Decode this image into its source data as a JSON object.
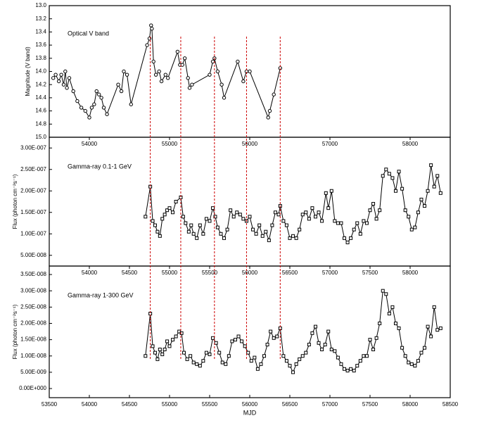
{
  "chart_data": [
    {
      "type": "line",
      "title": "Optical V band",
      "ylabel": "Magnitude (V band)",
      "color": "#000000",
      "marker": "circle",
      "xlim": [
        53500,
        58500
      ],
      "ylim": [
        15.0,
        13.0
      ],
      "yticks": [
        {
          "value": 13.0,
          "label": "13.0"
        },
        13.2,
        13.4,
        13.6,
        13.8,
        {
          "value": 14.0,
          "label": "14.0"
        },
        14.2,
        14.4,
        14.6,
        14.8,
        {
          "value": 15.0,
          "label": "15.0"
        }
      ],
      "vlines": [
        54760,
        55140,
        55560,
        55960,
        56380
      ],
      "vline_color": "#cc0000",
      "x": [
        53550,
        53580,
        53620,
        53650,
        53680,
        53700,
        53720,
        53750,
        53800,
        53850,
        53900,
        53950,
        54000,
        54030,
        54060,
        54090,
        54120,
        54150,
        54180,
        54220,
        54360,
        54400,
        54430,
        54470,
        54520,
        54720,
        54750,
        54770,
        54780,
        54800,
        54830,
        54870,
        54900,
        54950,
        54980,
        55100,
        55130,
        55160,
        55190,
        55230,
        55250,
        55280,
        55500,
        55540,
        55560,
        55600,
        55650,
        55680,
        55850,
        55920,
        55960,
        56000,
        56230,
        56250,
        56300,
        56380
      ],
      "y": [
        14.1,
        14.05,
        14.15,
        14.05,
        14.2,
        14.0,
        14.25,
        14.1,
        14.3,
        14.45,
        14.55,
        14.6,
        14.7,
        14.55,
        14.5,
        14.3,
        14.35,
        14.4,
        14.55,
        14.65,
        14.2,
        14.3,
        14.0,
        14.05,
        14.5,
        13.6,
        13.5,
        13.3,
        13.35,
        13.85,
        14.05,
        14.0,
        14.15,
        14.05,
        14.1,
        13.7,
        13.9,
        13.9,
        13.8,
        14.1,
        14.25,
        14.2,
        14.05,
        13.85,
        13.8,
        14.0,
        14.2,
        14.4,
        13.85,
        14.15,
        14.0,
        14.0,
        14.7,
        14.6,
        14.35,
        13.95
      ]
    },
    {
      "type": "line",
      "title": "Gamma-ray 0.1-1 GeV",
      "ylabel": "Flux (photon cm⁻²s⁻¹)",
      "color": "#000000",
      "marker": "square",
      "xlim": [
        53500,
        58500
      ],
      "top_xticks": [
        54000,
        55000,
        56000,
        57000,
        58000
      ],
      "ylim": [
        2.5e-08,
        3.25e-07
      ],
      "yticks": [
        {
          "value": 5e-08,
          "label": "5.00E-008"
        },
        {
          "value": 1e-07,
          "label": "1.00E-007"
        },
        {
          "value": 1.5e-07,
          "label": "1.50E-007"
        },
        {
          "value": 2e-07,
          "label": "2.00E-007"
        },
        {
          "value": 2.5e-07,
          "label": "2.50E-007"
        },
        {
          "value": 3e-07,
          "label": "3.00E-007"
        }
      ],
      "x": [
        54700,
        54760,
        54790,
        54820,
        54850,
        54880,
        54910,
        54940,
        54970,
        55000,
        55040,
        55080,
        55140,
        55170,
        55200,
        55240,
        55270,
        55300,
        55340,
        55380,
        55420,
        55460,
        55500,
        55540,
        55570,
        55600,
        55640,
        55680,
        55720,
        55760,
        55800,
        55840,
        55880,
        55920,
        55960,
        56000,
        56040,
        56080,
        56120,
        56160,
        56200,
        56240,
        56280,
        56320,
        56360,
        56380,
        56420,
        56460,
        56500,
        56540,
        56580,
        56620,
        56660,
        56700,
        56740,
        56780,
        56820,
        56860,
        56900,
        56950,
        56980,
        57020,
        57060,
        57100,
        57140,
        57180,
        57220,
        57260,
        57300,
        57340,
        57380,
        57420,
        57460,
        57500,
        57540,
        57580,
        57620,
        57660,
        57700,
        57740,
        57780,
        57820,
        57860,
        57900,
        57940,
        57980,
        58020,
        58060,
        58100,
        58140,
        58180,
        58220,
        58260,
        58300,
        58340,
        58380
      ],
      "y": [
        1.4e-07,
        2.1e-07,
        1.3e-07,
        1.2e-07,
        1.05e-07,
        9.5e-08,
        1.35e-07,
        1.45e-07,
        1.55e-07,
        1.6e-07,
        1.5e-07,
        1.75e-07,
        1.85e-07,
        1.4e-07,
        1.25e-07,
        1.05e-07,
        1.2e-07,
        1e-07,
        9e-08,
        1.2e-07,
        1e-07,
        1.35e-07,
        1.3e-07,
        1.6e-07,
        1.4e-07,
        1.15e-07,
        1e-07,
        9e-08,
        1.1e-07,
        1.55e-07,
        1.4e-07,
        1.5e-07,
        1.45e-07,
        1.35e-07,
        1.3e-07,
        1.4e-07,
        1.1e-07,
        1e-07,
        1.2e-07,
        9.5e-08,
        1.05e-07,
        8.5e-08,
        1.2e-07,
        1.5e-07,
        1.45e-07,
        1.65e-07,
        1.3e-07,
        1.2e-07,
        9e-08,
        9.5e-08,
        9e-08,
        1.1e-07,
        1.45e-07,
        1.5e-07,
        1.35e-07,
        1.6e-07,
        1.4e-07,
        1.5e-07,
        1.3e-07,
        1.95e-07,
        1.6e-07,
        2e-07,
        1.3e-07,
        1.25e-07,
        1.25e-07,
        9e-08,
        8e-08,
        9e-08,
        1.1e-07,
        1.25e-07,
        1e-07,
        1.3e-07,
        1.25e-07,
        1.55e-07,
        1.7e-07,
        1.35e-07,
        1.55e-07,
        2.35e-07,
        2.5e-07,
        2.4e-07,
        2.3e-07,
        2e-07,
        2.45e-07,
        2.05e-07,
        1.55e-07,
        1.4e-07,
        1.1e-07,
        1.15e-07,
        1.5e-07,
        1.8e-07,
        1.65e-07,
        2e-07,
        2.6e-07,
        2.1e-07,
        2.35e-07,
        1.95e-07
      ]
    },
    {
      "type": "line",
      "title": "Gamma-ray 1-300 GeV",
      "ylabel": "Flux (photon cm⁻²s⁻¹)",
      "xlabel": "MJD",
      "color": "#000000",
      "marker": "square",
      "xlim": [
        53500,
        58500
      ],
      "top_xticks": [
        54000,
        54500,
        55000,
        55500,
        56000,
        56500,
        57000,
        57500,
        58000
      ],
      "xticks": [
        53500,
        54000,
        54500,
        55000,
        55500,
        56000,
        56500,
        57000,
        57500,
        58000,
        58500
      ],
      "ylim": [
        -2.8e-09,
        3.76e-08
      ],
      "yticks": [
        {
          "value": 0,
          "label": "0.00E+000"
        },
        {
          "value": 5e-09,
          "label": "5.00E-009"
        },
        {
          "value": 1e-08,
          "label": "1.00E-008"
        },
        {
          "value": 1.5e-08,
          "label": "1.50E-008"
        },
        {
          "value": 2e-08,
          "label": "2.00E-008"
        },
        {
          "value": 2.5e-08,
          "label": "2.50E-008"
        },
        {
          "value": 3e-08,
          "label": "3.00E-008"
        },
        {
          "value": 3.5e-08,
          "label": "3.50E-008"
        }
      ],
      "x": [
        54700,
        54760,
        54790,
        54820,
        54850,
        54880,
        54910,
        54940,
        54970,
        55000,
        55040,
        55080,
        55120,
        55150,
        55180,
        55220,
        55260,
        55300,
        55340,
        55380,
        55420,
        55460,
        55500,
        55540,
        55580,
        55620,
        55660,
        55700,
        55740,
        55780,
        55820,
        55860,
        55900,
        55940,
        55980,
        56020,
        56060,
        56100,
        56140,
        56180,
        56220,
        56260,
        56300,
        56340,
        56380,
        56420,
        56460,
        56500,
        56540,
        56580,
        56620,
        56660,
        56700,
        56740,
        56780,
        56820,
        56860,
        56900,
        56940,
        56980,
        57020,
        57060,
        57100,
        57140,
        57180,
        57220,
        57260,
        57300,
        57340,
        57380,
        57420,
        57460,
        57500,
        57540,
        57580,
        57620,
        57660,
        57700,
        57740,
        57780,
        57820,
        57860,
        57900,
        57940,
        57980,
        58020,
        58060,
        58100,
        58140,
        58180,
        58220,
        58260,
        58300,
        58340,
        58380
      ],
      "y": [
        1e-08,
        2.3e-08,
        1.3e-08,
        1.1e-08,
        9e-09,
        1.2e-08,
        1.05e-08,
        1.2e-08,
        1.45e-08,
        1.3e-08,
        1.5e-08,
        1.6e-08,
        1.75e-08,
        1.7e-08,
        1.1e-08,
        9e-09,
        1e-08,
        8e-09,
        7.5e-09,
        7e-09,
        8.5e-09,
        1.1e-08,
        1.05e-08,
        1.55e-08,
        1.4e-08,
        1.1e-08,
        8e-09,
        7.5e-09,
        1e-08,
        1.45e-08,
        1.5e-08,
        1.6e-08,
        1.45e-08,
        1.3e-08,
        1.1e-08,
        8.5e-09,
        9.5e-09,
        6e-09,
        7.5e-09,
        1e-08,
        1.35e-08,
        1.75e-08,
        1.55e-08,
        1.6e-08,
        1.85e-08,
        1e-08,
        8.5e-09,
        7e-09,
        5e-09,
        7.5e-09,
        9e-09,
        1e-08,
        1.1e-08,
        1.35e-08,
        1.7e-08,
        1.9e-08,
        1.4e-08,
        1.2e-08,
        1.35e-08,
        1.75e-08,
        1.2e-08,
        1.15e-08,
        9.5e-09,
        7.5e-09,
        6e-09,
        5.5e-09,
        6e-09,
        5.5e-09,
        7e-09,
        8.5e-09,
        1e-08,
        1e-08,
        1.5e-08,
        1.2e-08,
        1.55e-08,
        2e-08,
        3e-08,
        2.9e-08,
        2.3e-08,
        2.5e-08,
        2e-08,
        1.85e-08,
        1.25e-08,
        1e-08,
        8e-09,
        7.5e-09,
        7e-09,
        8.5e-09,
        1.1e-08,
        1.25e-08,
        1.9e-08,
        1.6e-08,
        2.5e-08,
        1.8e-08,
        1.85e-08
      ]
    }
  ]
}
